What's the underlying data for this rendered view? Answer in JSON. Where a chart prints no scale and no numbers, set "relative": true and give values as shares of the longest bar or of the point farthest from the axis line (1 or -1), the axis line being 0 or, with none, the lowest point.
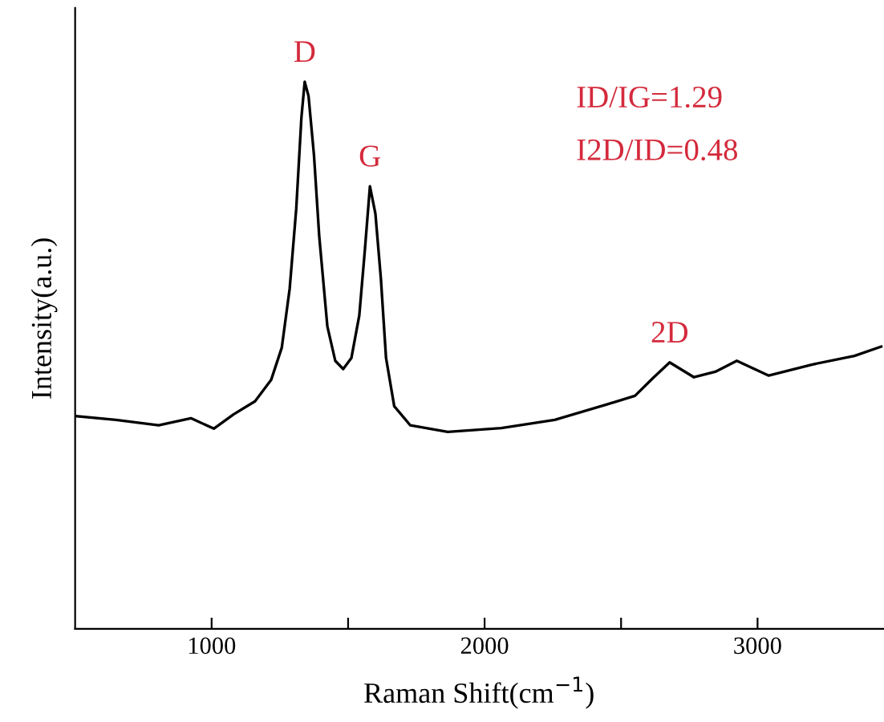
{
  "chart_data": {
    "type": "line",
    "relative": true,
    "xlabel": "Raman Shift(cm$^{−1}$)",
    "ylabel": "Intensity(a.u.)",
    "xlim": [
      500,
      3460
    ],
    "xticks": [
      {
        "value": 1000,
        "label": "1000"
      },
      {
        "value": 1500,
        "label": null
      },
      {
        "value": 2000,
        "label": "2000"
      },
      {
        "value": 2500,
        "label": null
      },
      {
        "value": 3000,
        "label": "3000"
      }
    ],
    "tick_labels": "x",
    "grid": false,
    "marker": "none",
    "line_style": "solid",
    "series": [
      {
        "color": "#000000",
        "x": [
          502,
          649,
          806,
          924,
          1008,
          1080,
          1159,
          1218,
          1257,
          1286,
          1310,
          1329,
          1341,
          1355,
          1375,
          1394,
          1424,
          1453,
          1482,
          1512,
          1541,
          1561,
          1580,
          1600,
          1620,
          1639,
          1669,
          1728,
          1865,
          2061,
          2257,
          2453,
          2551,
          2620,
          2678,
          2767,
          2845,
          2924,
          3041,
          3198,
          3355,
          3453
        ],
        "values": [
          0.389,
          0.382,
          0.372,
          0.385,
          0.366,
          0.392,
          0.416,
          0.455,
          0.514,
          0.622,
          0.768,
          0.935,
          1.0,
          0.974,
          0.866,
          0.719,
          0.553,
          0.49,
          0.475,
          0.495,
          0.573,
          0.69,
          0.809,
          0.759,
          0.641,
          0.495,
          0.407,
          0.372,
          0.36,
          0.367,
          0.382,
          0.411,
          0.426,
          0.46,
          0.487,
          0.46,
          0.47,
          0.49,
          0.463,
          0.483,
          0.499,
          0.516
        ]
      }
    ],
    "annotations": [
      {
        "text": "D",
        "x": 1341,
        "y": 1.0
      },
      {
        "text": "G",
        "x": 1580,
        "y": 0.809
      },
      {
        "text": "2D",
        "x": 2678,
        "y": 0.487
      },
      "ID/IG=1.29",
      "I2D/ID=0.48"
    ]
  }
}
